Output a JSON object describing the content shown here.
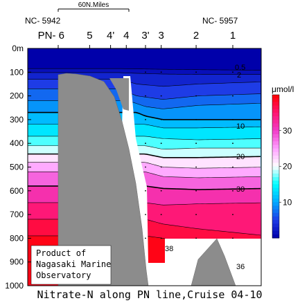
{
  "chart_data": {
    "type": "contour",
    "title": "Nitrate-N along PN line,Cruise 04-10",
    "scale_bar_label": "60N.Miles",
    "start_station_id": "NC- 5942",
    "end_station_id": "NC- 5957",
    "depth_axis": {
      "range": [
        0,
        1000
      ],
      "tick_labels": [
        "0m",
        "100",
        "200",
        "300",
        "400",
        "500",
        "600",
        "700",
        "800",
        "900",
        "1000"
      ]
    },
    "stations": [
      {
        "label": "PN- 6",
        "pos": 0.0
      },
      {
        "label": "5",
        "pos": 0.18
      },
      {
        "label": "4'",
        "pos": 0.3
      },
      {
        "label": "4",
        "pos": 0.39
      },
      {
        "label": "3'",
        "pos": 0.5
      },
      {
        "label": "3",
        "pos": 0.59
      },
      {
        "label": "2",
        "pos": 0.79
      },
      {
        "label": "1",
        "pos": 1.0
      }
    ],
    "contour_labels": [
      "0.5",
      "2",
      "10",
      "20",
      "30",
      "38",
      "36"
    ],
    "colorbar": {
      "unit": "μmol/l",
      "ticks": [
        {
          "value": 30,
          "label": "30"
        },
        {
          "value": 20,
          "label": "20"
        },
        {
          "value": 10,
          "label": "10"
        }
      ],
      "range": [
        0,
        40
      ]
    },
    "credit_lines": [
      "Product of",
      "Nagasaki Marine",
      "Observatory"
    ]
  }
}
